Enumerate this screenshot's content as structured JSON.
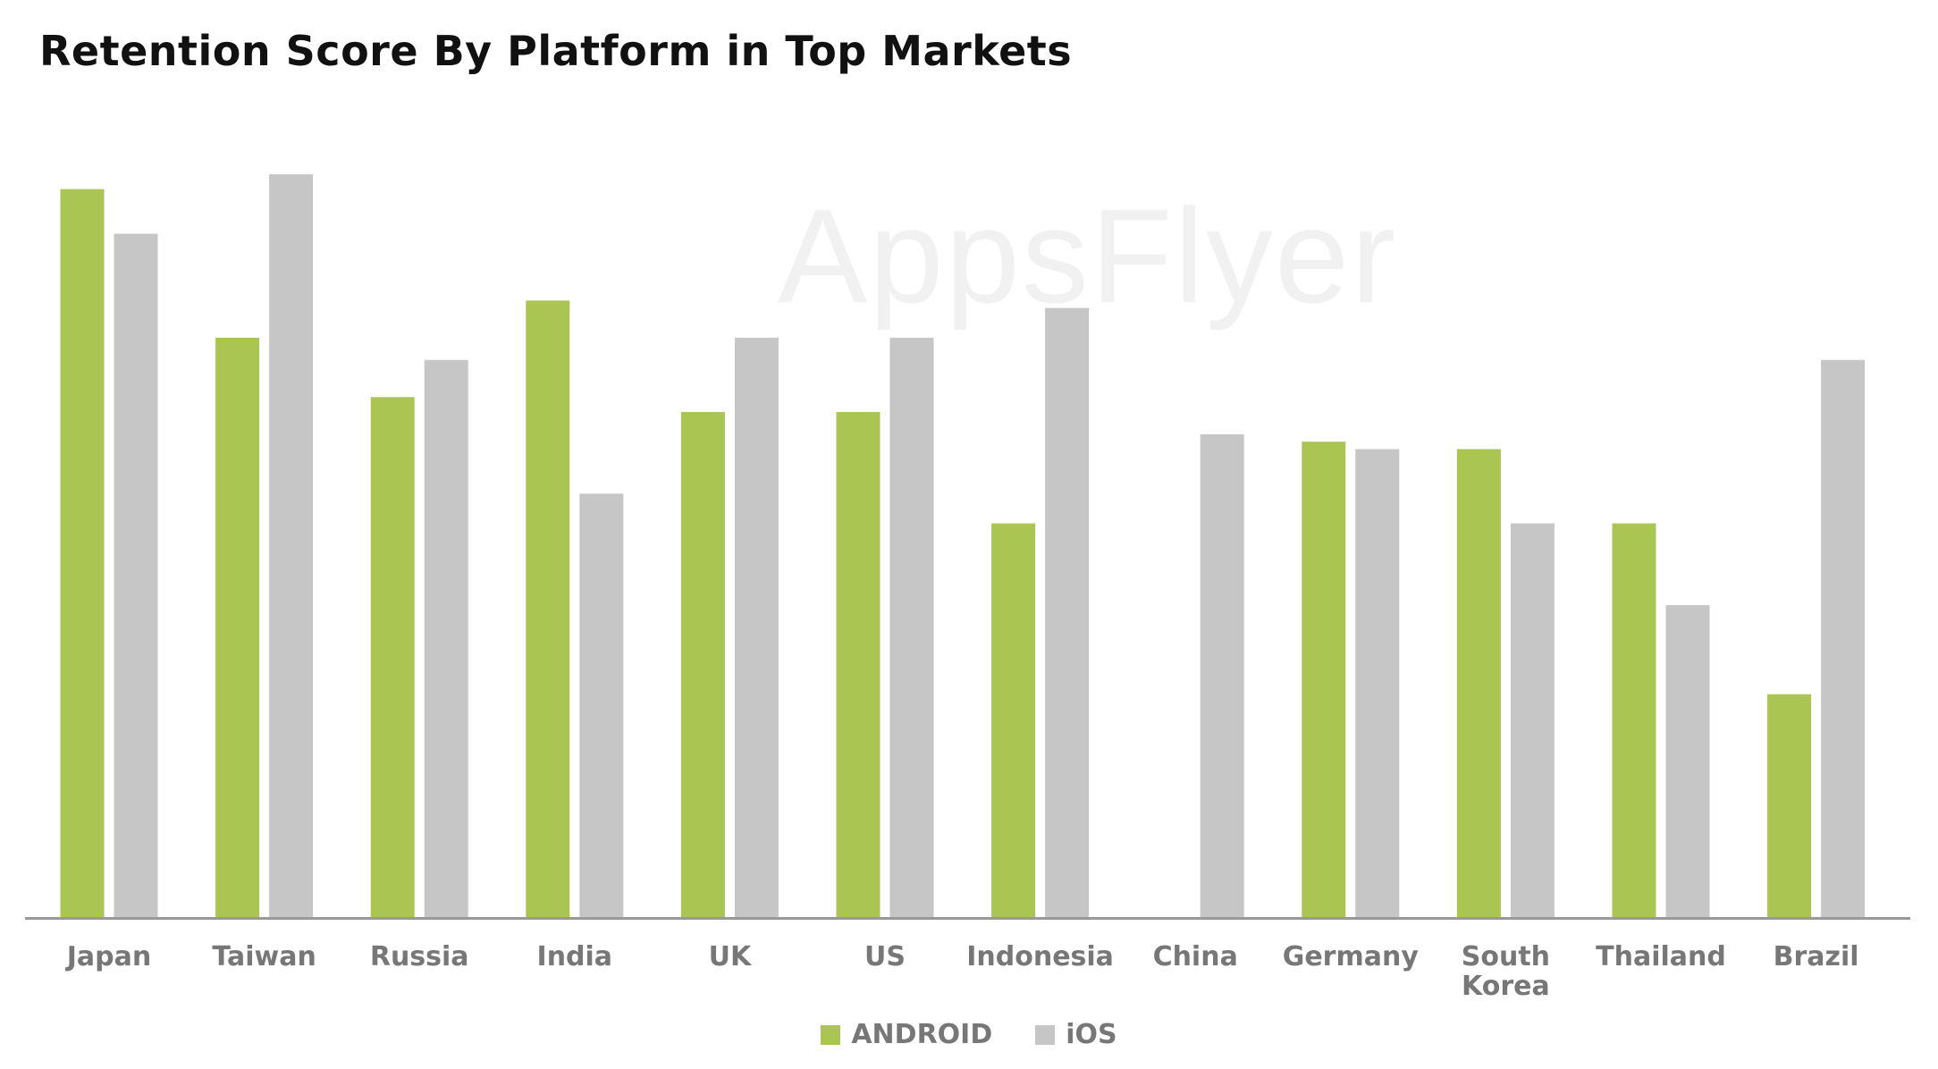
{
  "chart_data": {
    "type": "bar",
    "title": "Retention Score By Platform in Top Markets",
    "xlabel": "",
    "ylabel": "",
    "ylim": [
      0,
      100
    ],
    "grid": false,
    "legend_position": "bottom",
    "categories": [
      "Japan",
      "Taiwan",
      "Russia",
      "India",
      "UK",
      "US",
      "Indonesia",
      "China",
      "Germany",
      "South Korea",
      "Thailand",
      "Brazil"
    ],
    "series": [
      {
        "name": "ANDROID",
        "color": "#abc553",
        "values": [
          98,
          78,
          70,
          83,
          68,
          68,
          53,
          0,
          64,
          63,
          53,
          30
        ]
      },
      {
        "name": "iOS",
        "color": "#c6c6c6",
        "values": [
          92,
          100,
          75,
          57,
          78,
          78,
          82,
          65,
          63,
          53,
          42,
          75
        ]
      }
    ]
  },
  "watermark": "AppsFlyer"
}
